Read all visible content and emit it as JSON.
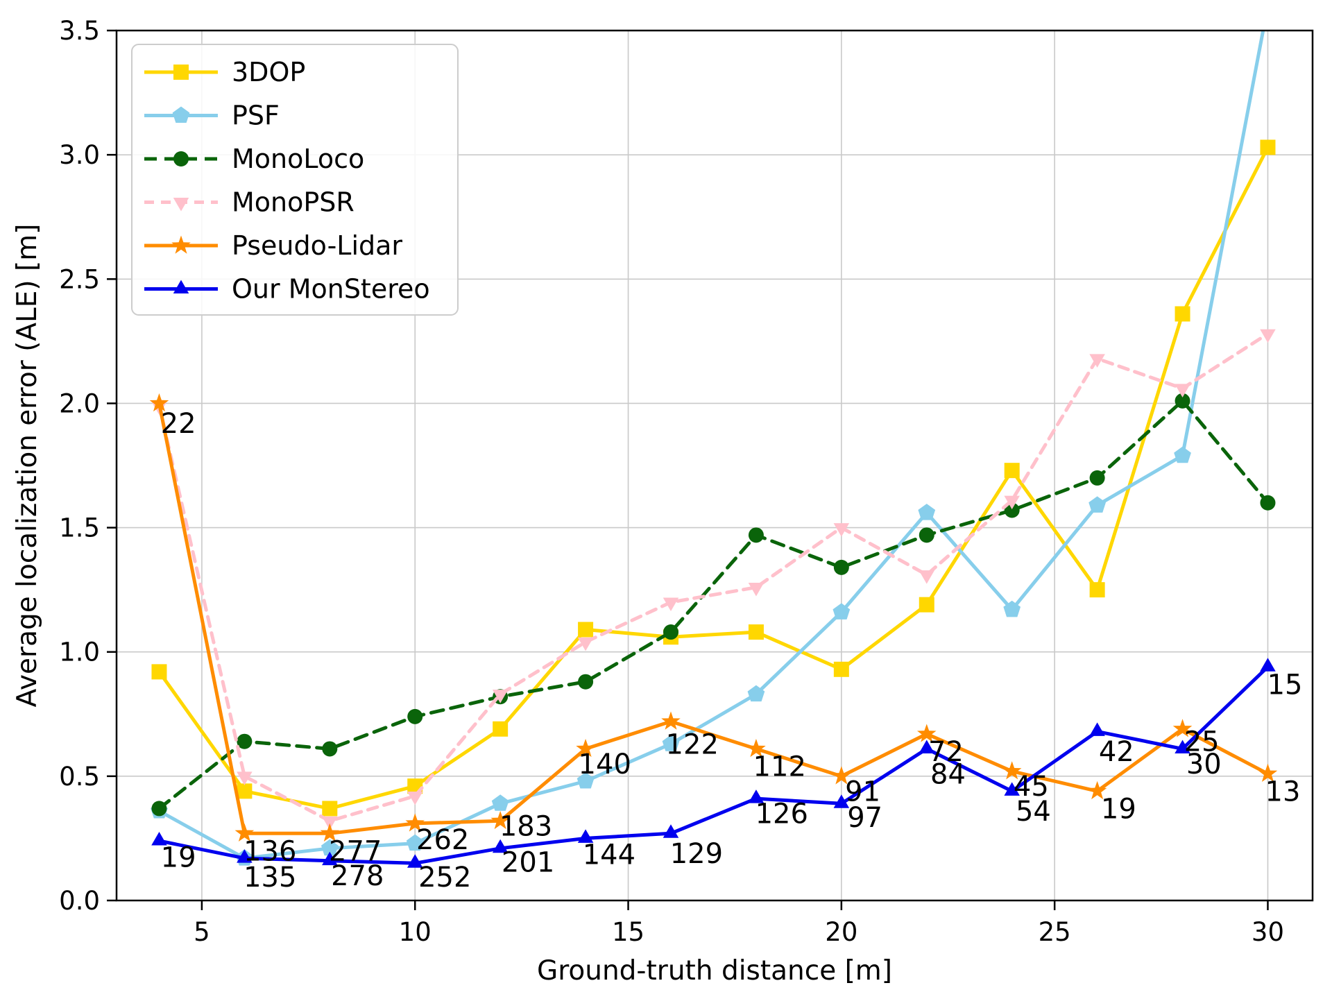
{
  "chart_data": {
    "type": "line",
    "title": "",
    "xlabel": "Ground-truth distance [m]",
    "ylabel": "Average localization error (ALE) [m]",
    "x": [
      4,
      6,
      8,
      10,
      12,
      14,
      16,
      18,
      20,
      22,
      24,
      26,
      28,
      30
    ],
    "xlim": [
      3.0,
      31.05
    ],
    "ylim": [
      0,
      3.5
    ],
    "xticks": [
      5,
      10,
      15,
      20,
      25,
      30
    ],
    "ytick_labels": [
      "0.0",
      "0.5",
      "1.0",
      "1.5",
      "2.0",
      "2.5",
      "3.0",
      "3.5"
    ],
    "grid": true,
    "legend_position": "upper-left",
    "series": [
      {
        "name": "3DOP",
        "color": "#FFD700",
        "marker": "square",
        "dash": null,
        "values": [
          0.92,
          0.44,
          0.37,
          0.46,
          0.69,
          1.09,
          1.06,
          1.08,
          0.93,
          1.19,
          1.73,
          1.25,
          2.36,
          3.03
        ]
      },
      {
        "name": "PSF",
        "color": "#87CEEB",
        "marker": "pentagon",
        "dash": null,
        "values": [
          0.36,
          0.17,
          0.21,
          0.23,
          0.39,
          0.48,
          0.63,
          0.83,
          1.16,
          1.56,
          1.17,
          1.59,
          1.79,
          3.6
        ]
      },
      {
        "name": "MonoLoco",
        "color": "#0A640A",
        "marker": "circle",
        "dash": [
          18,
          11
        ],
        "values": [
          0.37,
          0.64,
          0.61,
          0.74,
          0.82,
          0.88,
          1.08,
          1.47,
          1.34,
          1.47,
          1.57,
          1.7,
          2.01,
          1.6
        ]
      },
      {
        "name": "MonoPSR",
        "color": "#FFC0CB",
        "marker": "triangle-down",
        "dash": [
          14,
          10
        ],
        "values": [
          1.99,
          0.5,
          0.32,
          0.42,
          0.83,
          1.04,
          1.2,
          1.26,
          1.5,
          1.31,
          1.61,
          2.18,
          2.06,
          2.28
        ]
      },
      {
        "name": "Pseudo-Lidar",
        "color": "#FF8C00",
        "marker": "star",
        "dash": null,
        "values": [
          2.0,
          0.27,
          0.27,
          0.31,
          0.32,
          0.61,
          0.72,
          0.61,
          0.5,
          0.67,
          0.52,
          0.44,
          0.69,
          0.51
        ]
      },
      {
        "name": "Our MonStereo",
        "color": "#0000EE",
        "marker": "triangle-up",
        "dash": null,
        "values": [
          0.24,
          0.17,
          0.16,
          0.15,
          0.21,
          0.25,
          0.27,
          0.41,
          0.39,
          0.61,
          0.44,
          0.68,
          0.61,
          0.94
        ]
      }
    ],
    "annotations": [
      {
        "series": "Pseudo-Lidar",
        "label": "22",
        "x": 4.45,
        "y": 1.92
      },
      {
        "series": "Pseudo-Lidar",
        "label": "136",
        "x": 6.6,
        "y": 0.2
      },
      {
        "series": "Pseudo-Lidar",
        "label": "277",
        "x": 8.6,
        "y": 0.2
      },
      {
        "series": "Pseudo-Lidar",
        "label": "262",
        "x": 10.65,
        "y": 0.245
      },
      {
        "series": "Pseudo-Lidar",
        "label": "183",
        "x": 12.6,
        "y": 0.3
      },
      {
        "series": "Pseudo-Lidar",
        "label": "140",
        "x": 14.45,
        "y": 0.55
      },
      {
        "series": "Pseudo-Lidar",
        "label": "122",
        "x": 16.5,
        "y": 0.63
      },
      {
        "series": "Pseudo-Lidar",
        "label": "112",
        "x": 18.55,
        "y": 0.54
      },
      {
        "series": "Pseudo-Lidar",
        "label": "91",
        "x": 20.5,
        "y": 0.44
      },
      {
        "series": "Pseudo-Lidar",
        "label": "72",
        "x": 22.45,
        "y": 0.6
      },
      {
        "series": "Pseudo-Lidar",
        "label": "45",
        "x": 24.45,
        "y": 0.46
      },
      {
        "series": "Pseudo-Lidar",
        "label": "19",
        "x": 26.5,
        "y": 0.37
      },
      {
        "series": "Pseudo-Lidar",
        "label": "25",
        "x": 28.45,
        "y": 0.64
      },
      {
        "series": "Pseudo-Lidar",
        "label": "13",
        "x": 30.35,
        "y": 0.44
      },
      {
        "series": "Our MonStereo",
        "label": "19",
        "x": 4.45,
        "y": 0.175
      },
      {
        "series": "Our MonStereo",
        "label": "135",
        "x": 6.6,
        "y": 0.095
      },
      {
        "series": "Our MonStereo",
        "label": "278",
        "x": 8.65,
        "y": 0.1
      },
      {
        "series": "Our MonStereo",
        "label": "252",
        "x": 10.7,
        "y": 0.095
      },
      {
        "series": "Our MonStereo",
        "label": "201",
        "x": 12.65,
        "y": 0.155
      },
      {
        "series": "Our MonStereo",
        "label": "144",
        "x": 14.55,
        "y": 0.185
      },
      {
        "series": "Our MonStereo",
        "label": "129",
        "x": 16.6,
        "y": 0.19
      },
      {
        "series": "Our MonStereo",
        "label": "126",
        "x": 18.6,
        "y": 0.35
      },
      {
        "series": "Our MonStereo",
        "label": "97",
        "x": 20.55,
        "y": 0.335
      },
      {
        "series": "Our MonStereo",
        "label": "84",
        "x": 22.5,
        "y": 0.51
      },
      {
        "series": "Our MonStereo",
        "label": "54",
        "x": 24.5,
        "y": 0.36
      },
      {
        "series": "Our MonStereo",
        "label": "42",
        "x": 26.45,
        "y": 0.6
      },
      {
        "series": "Our MonStereo",
        "label": "30",
        "x": 28.5,
        "y": 0.55
      },
      {
        "series": "Our MonStereo",
        "label": "15",
        "x": 30.4,
        "y": 0.87
      }
    ]
  },
  "style": {
    "background": "#FFFFFF",
    "grid_color": "#C9C9C9",
    "axis_color": "#000000",
    "text_color": "#000000",
    "legend_border_color": "#CCCCCC",
    "legend_background": "rgba(255,255,255,0.85)"
  }
}
